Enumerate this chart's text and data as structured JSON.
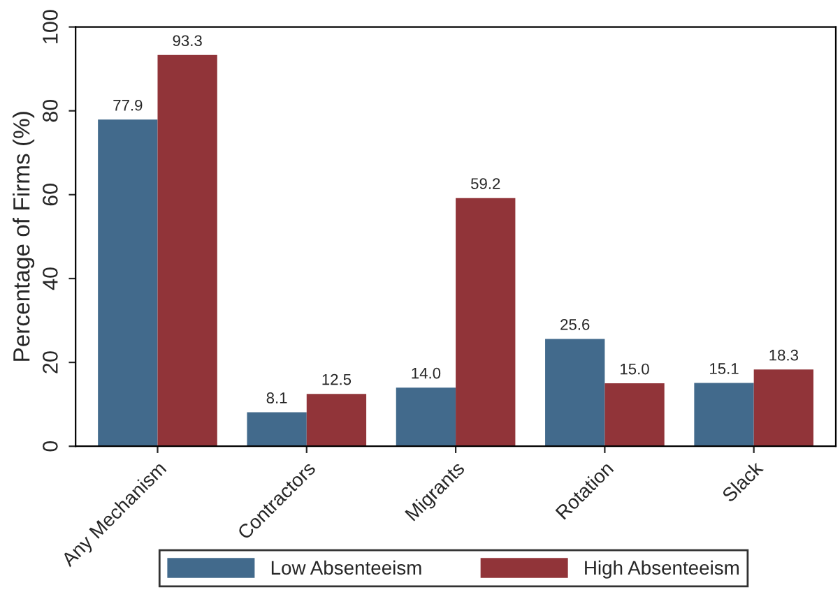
{
  "chart_data": {
    "type": "bar",
    "ylabel": "Percentage of Firms (%)",
    "categories": [
      "Any Mechanism",
      "Contractors",
      "Migrants",
      "Rotation",
      "Slack"
    ],
    "series": [
      {
        "name": "Low Absenteeism",
        "color": "#426a8c",
        "values": [
          77.9,
          8.1,
          14.0,
          25.6,
          15.1
        ],
        "value_labels": [
          "77.9",
          "8.1",
          "14.0",
          "25.6",
          "15.1"
        ]
      },
      {
        "name": "High Absenteeism",
        "color": "#913439",
        "values": [
          93.3,
          12.5,
          59.2,
          15.0,
          18.3
        ],
        "value_labels": [
          "93.3",
          "12.5",
          "59.2",
          "15.0",
          "18.3"
        ]
      }
    ],
    "ylim": [
      0,
      100
    ],
    "yticks": [
      0,
      20,
      40,
      60,
      80,
      100
    ],
    "grid": false,
    "legend": "bottom"
  }
}
